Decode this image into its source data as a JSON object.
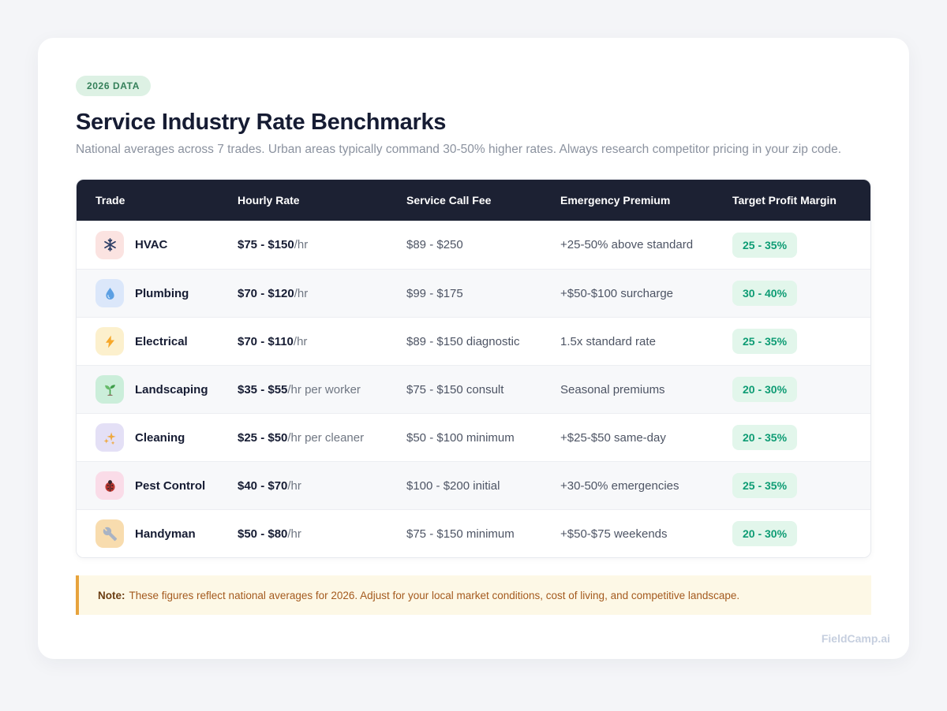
{
  "page": {
    "badge": "2026 DATA",
    "title": "Service Industry Rate Benchmarks",
    "subtitle": "National averages across 7 trades. Urban areas typically command 30-50% higher rates. Always research competitor pricing in your zip code.",
    "watermark": "FieldCamp.ai"
  },
  "table": {
    "columns": [
      "Trade",
      "Hourly Rate",
      "Service Call Fee",
      "Emergency Premium",
      "Target Profit Margin"
    ],
    "rows": [
      {
        "trade": "HVAC",
        "icon": "snowflake-icon",
        "icon_bg": "#fbe3e1",
        "rate": "$75 - $150",
        "rate_suffix": "/hr",
        "service_fee": "$89 - $250",
        "emergency": "+25-50% above standard",
        "margin": "25 - 35%"
      },
      {
        "trade": "Plumbing",
        "icon": "droplet-icon",
        "icon_bg": "#dbe7fa",
        "rate": "$70 - $120",
        "rate_suffix": "/hr",
        "service_fee": "$99 - $175",
        "emergency": "+$50-$100 surcharge",
        "margin": "30 - 40%"
      },
      {
        "trade": "Electrical",
        "icon": "lightning-icon",
        "icon_bg": "#fcf0cd",
        "rate": "$70 - $110",
        "rate_suffix": "/hr",
        "service_fee": "$89 - $150 diagnostic",
        "emergency": "1.5x standard rate",
        "margin": "25 - 35%"
      },
      {
        "trade": "Landscaping",
        "icon": "seedling-icon",
        "icon_bg": "#cbeeda",
        "rate": "$35 - $55",
        "rate_suffix": "/hr per worker",
        "service_fee": "$75 - $150 consult",
        "emergency": "Seasonal premiums",
        "margin": "20 - 30%"
      },
      {
        "trade": "Cleaning",
        "icon": "sparkles-icon",
        "icon_bg": "#e4e0f6",
        "rate": "$25 - $50",
        "rate_suffix": "/hr per cleaner",
        "service_fee": "$50 - $100 minimum",
        "emergency": "+$25-$50 same-day",
        "margin": "20 - 35%"
      },
      {
        "trade": "Pest Control",
        "icon": "ladybug-icon",
        "icon_bg": "#fadce8",
        "rate": "$40 - $70",
        "rate_suffix": "/hr",
        "service_fee": "$100 - $200 initial",
        "emergency": "+30-50% emergencies",
        "margin": "25 - 35%"
      },
      {
        "trade": "Handyman",
        "icon": "wrench-icon",
        "icon_bg": "#f8dcae",
        "rate": "$50 - $80",
        "rate_suffix": "/hr",
        "service_fee": "$75 - $150 minimum",
        "emergency": "+$50-$75 weekends",
        "margin": "20 - 30%"
      }
    ]
  },
  "note": {
    "label": "Note:",
    "text": "These figures reflect national averages for 2026. Adjust for your local market conditions, cost of living, and competitive landscape."
  },
  "colors": {
    "page_bg": "#f4f5f8",
    "header_bg": "#1c2133",
    "title_ink": "#161c33",
    "badge_bg": "#ddf1e4",
    "badge_fg": "#35805a",
    "pill_bg": "#e2f6eb",
    "pill_fg": "#0e9c74",
    "note_bg": "#fdf8e6",
    "note_border": "#e7a33c",
    "note_fg": "#a45a1e",
    "watermark": "#c6cfdf"
  }
}
